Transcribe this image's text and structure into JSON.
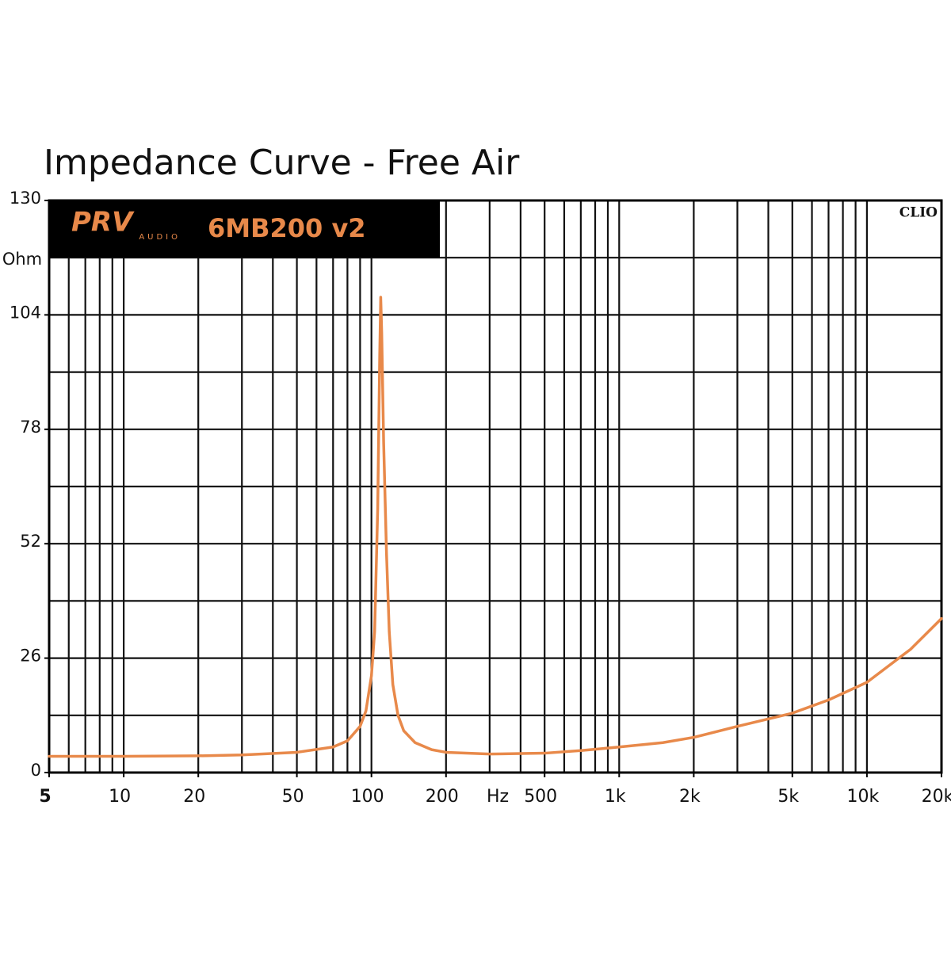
{
  "chart_data": {
    "type": "line",
    "title": "Impedance Curve - Free Air",
    "y_label": "Ohm",
    "x_label": "Hz",
    "brand": "PRV",
    "brand_sub": "AUDIO",
    "model": "6MB200 v2",
    "software": "CLIO",
    "log_x": true,
    "grid": true,
    "xlim": [
      5,
      20000
    ],
    "ylim": [
      0,
      130
    ],
    "xticks": [
      5,
      10,
      20,
      50,
      100,
      200,
      500,
      {
        "value": 1000,
        "label": "1k"
      },
      {
        "value": 2000,
        "label": "2k"
      },
      {
        "value": 5000,
        "label": "5k"
      },
      {
        "value": 10000,
        "label": "10k"
      },
      {
        "value": 20000,
        "label": "20k"
      }
    ],
    "yticks": [
      0,
      26,
      52,
      78,
      104,
      130
    ],
    "xgrid": [
      6,
      7,
      8,
      9,
      10,
      20,
      30,
      40,
      50,
      60,
      70,
      80,
      90,
      100,
      200,
      300,
      400,
      500,
      600,
      700,
      800,
      900,
      1000,
      2000,
      3000,
      4000,
      5000,
      6000,
      7000,
      8000,
      9000,
      10000,
      20000
    ],
    "ygrid": [
      13,
      26,
      39,
      52,
      65,
      78,
      91,
      104,
      117
    ],
    "x": [
      5,
      10,
      20,
      30,
      50,
      70,
      80,
      90,
      95,
      100,
      103,
      106,
      108,
      109,
      110,
      112,
      115,
      118,
      122,
      128,
      135,
      150,
      175,
      200,
      300,
      500,
      700,
      1000,
      1500,
      2000,
      3000,
      5000,
      7000,
      10000,
      15000,
      20000
    ],
    "series": [
      {
        "name": "Impedance",
        "color": "#e8894a",
        "values": [
          3.7,
          3.7,
          3.8,
          4.0,
          4.6,
          5.8,
          7.2,
          10.5,
          14,
          22,
          32,
          60,
          95,
          108,
          100,
          75,
          50,
          32,
          20,
          13,
          9.5,
          6.8,
          5.2,
          4.6,
          4.2,
          4.4,
          5.0,
          5.8,
          6.8,
          8.0,
          10.5,
          13.5,
          16.5,
          20.5,
          28,
          35
        ]
      }
    ]
  }
}
